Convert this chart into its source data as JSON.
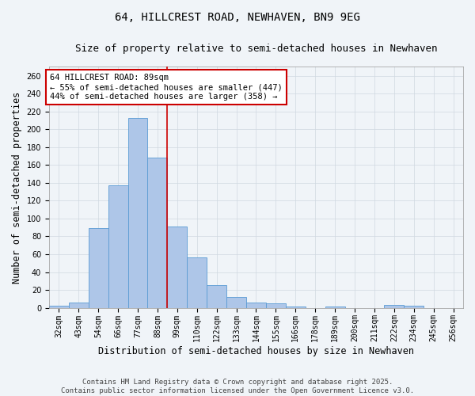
{
  "title": "64, HILLCREST ROAD, NEWHAVEN, BN9 9EG",
  "subtitle": "Size of property relative to semi-detached houses in Newhaven",
  "xlabel": "Distribution of semi-detached houses by size in Newhaven",
  "ylabel": "Number of semi-detached properties",
  "bin_labels": [
    "32sqm",
    "43sqm",
    "54sqm",
    "66sqm",
    "77sqm",
    "88sqm",
    "99sqm",
    "110sqm",
    "122sqm",
    "133sqm",
    "144sqm",
    "155sqm",
    "166sqm",
    "178sqm",
    "189sqm",
    "200sqm",
    "211sqm",
    "222sqm",
    "234sqm",
    "245sqm",
    "256sqm"
  ],
  "bar_heights": [
    2,
    6,
    89,
    137,
    213,
    168,
    91,
    56,
    25,
    12,
    6,
    5,
    1,
    0,
    1,
    0,
    0,
    3,
    2,
    0,
    0
  ],
  "bar_color": "#aec6e8",
  "bar_edge_color": "#5a9bd4",
  "vline_bin_index": 5,
  "vline_color": "#cc0000",
  "annotation_line1": "64 HILLCREST ROAD: 89sqm",
  "annotation_line2": "← 55% of semi-detached houses are smaller (447)",
  "annotation_line3": "44% of semi-detached houses are larger (358) →",
  "annotation_box_color": "#ffffff",
  "annotation_box_edge_color": "#cc0000",
  "ylim": [
    0,
    270
  ],
  "yticks": [
    0,
    20,
    40,
    60,
    80,
    100,
    120,
    140,
    160,
    180,
    200,
    220,
    240,
    260
  ],
  "background_color": "#f0f4f8",
  "grid_color": "#d0d8e0",
  "footer_line1": "Contains HM Land Registry data © Crown copyright and database right 2025.",
  "footer_line2": "Contains public sector information licensed under the Open Government Licence v3.0.",
  "title_fontsize": 10,
  "subtitle_fontsize": 9,
  "axis_label_fontsize": 8.5,
  "tick_fontsize": 7,
  "annotation_fontsize": 7.5,
  "footer_fontsize": 6.5
}
